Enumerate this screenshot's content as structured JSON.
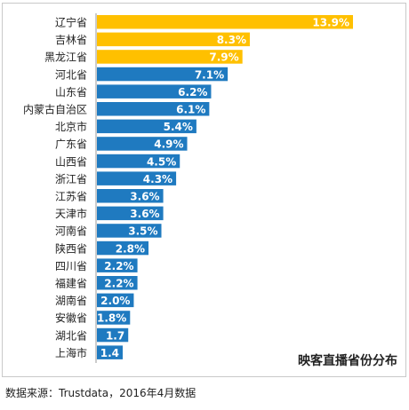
{
  "chart_data": {
    "type": "bar",
    "orientation": "horizontal",
    "title": "映客直播省份分布",
    "categories": [
      "辽宁省",
      "吉林省",
      "黑龙江省",
      "河北省",
      "山东省",
      "内蒙古自治区",
      "北京市",
      "广东省",
      "山西省",
      "浙江省",
      "江苏省",
      "天津市",
      "河南省",
      "陕西省",
      "四川省",
      "福建省",
      "湖南省",
      "安徽省",
      "湖北省",
      "上海市"
    ],
    "values": [
      13.9,
      8.3,
      7.9,
      7.1,
      6.2,
      6.1,
      5.4,
      4.9,
      4.5,
      4.3,
      3.6,
      3.6,
      3.5,
      2.8,
      2.2,
      2.2,
      2.0,
      1.8,
      1.7,
      1.4
    ],
    "value_labels": [
      "13.9%",
      "8.3%",
      "7.9%",
      "7.1%",
      "6.2%",
      "6.1%",
      "5.4%",
      "4.9%",
      "4.5%",
      "4.3%",
      "3.6%",
      "3.6%",
      "3.5%",
      "2.8%",
      "2.2%",
      "2.2%",
      "2.0%",
      "1.8%",
      "1.7",
      "1.4"
    ],
    "highlight_count": 3,
    "colors": {
      "highlight": "#FFC000",
      "normal": "#1F7AC0",
      "axis": "#999999"
    },
    "xlim": [
      0,
      13.9
    ],
    "legend": "none",
    "grid": false
  },
  "footer": {
    "source": "数据来源：Trustdata，2016年4月数据"
  }
}
